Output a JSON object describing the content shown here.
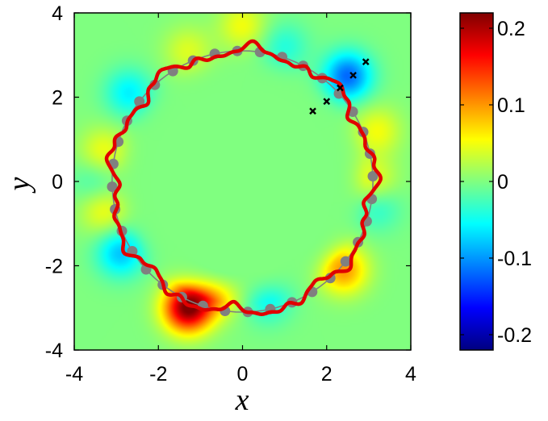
{
  "chart_data": {
    "type": "heatmap",
    "xlabel": "x",
    "ylabel": "y",
    "xlim": [
      -4,
      4
    ],
    "ylim": [
      -4,
      4
    ],
    "xticks": [
      "-4",
      "-2",
      "0",
      "2",
      "4"
    ],
    "yticks": [
      "4",
      "2",
      "0",
      "-2",
      "-4"
    ],
    "colorbar": {
      "range": [
        -0.22,
        0.22
      ],
      "ticks": [
        "0.2",
        "0.1",
        "0",
        "-0.1",
        "-0.2"
      ],
      "colormap": "jet"
    },
    "field_lobes": [
      {
        "x": -1.3,
        "y": -3.0,
        "value": 0.22
      },
      {
        "x": -0.6,
        "y": -2.6,
        "value": 0.08
      },
      {
        "x": 2.4,
        "y": -2.1,
        "value": 0.1
      },
      {
        "x": 3.1,
        "y": 0.0,
        "value": 0.05
      },
      {
        "x": 3.2,
        "y": 1.2,
        "value": 0.05
      },
      {
        "x": -3.3,
        "y": 0.7,
        "value": 0.05
      },
      {
        "x": -3.3,
        "y": -0.7,
        "value": 0.05
      },
      {
        "x": 0.0,
        "y": 3.7,
        "value": 0.05
      },
      {
        "x": -1.3,
        "y": 3.1,
        "value": 0.04
      },
      {
        "x": 2.5,
        "y": 2.5,
        "value": -0.12
      },
      {
        "x": -2.9,
        "y": -1.7,
        "value": -0.08
      },
      {
        "x": -2.7,
        "y": 2.1,
        "value": -0.06
      },
      {
        "x": 0.6,
        "y": -2.8,
        "value": -0.05
      },
      {
        "x": 1.0,
        "y": 3.2,
        "value": -0.04
      },
      {
        "x": 3.2,
        "y": -0.6,
        "value": -0.04
      },
      {
        "x": -3.5,
        "y": 0.0,
        "value": -0.03
      }
    ],
    "series": [
      {
        "type": "circle",
        "center": [
          0,
          0
        ],
        "radius": 3.1,
        "color": "#808080"
      },
      {
        "type": "dots",
        "color": "#808080",
        "count": 36,
        "center": [
          0,
          0
        ],
        "radius": 3.1
      },
      {
        "type": "contour",
        "color": "#e00000",
        "radius": 3.1,
        "jitter": 0.2
      },
      {
        "type": "markers",
        "marker": "x",
        "color": "#000000",
        "points": [
          [
            1.67,
            1.67
          ],
          [
            2.0,
            1.9
          ],
          [
            2.32,
            2.22
          ],
          [
            2.63,
            2.52
          ],
          [
            2.93,
            2.84
          ]
        ]
      }
    ]
  }
}
